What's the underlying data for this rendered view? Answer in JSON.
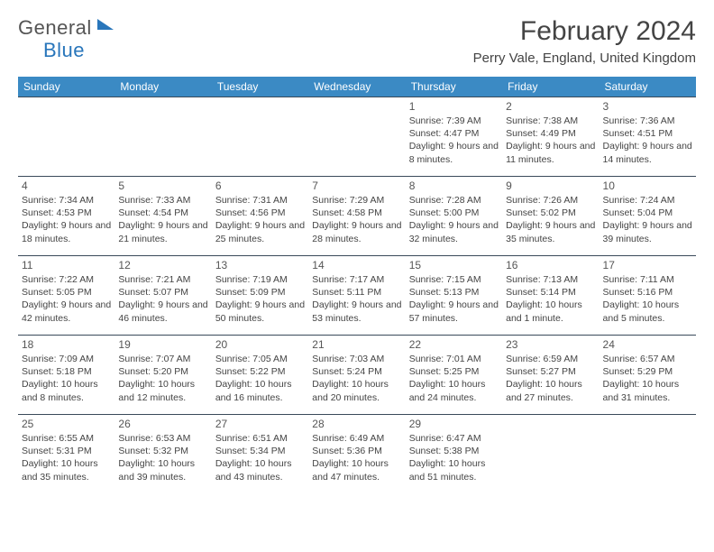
{
  "logo": {
    "part1": "General",
    "part2": "Blue"
  },
  "title": "February 2024",
  "location": "Perry Vale, England, United Kingdom",
  "colors": {
    "header_bg": "#3b8ac4",
    "header_fg": "#ffffff",
    "divider": "#3a4a5a",
    "logo_accent": "#2976bb"
  },
  "day_headers": [
    "Sunday",
    "Monday",
    "Tuesday",
    "Wednesday",
    "Thursday",
    "Friday",
    "Saturday"
  ],
  "weeks": [
    [
      null,
      null,
      null,
      null,
      {
        "d": "1",
        "sr": "7:39 AM",
        "ss": "4:47 PM",
        "dl": "9 hours and 8 minutes."
      },
      {
        "d": "2",
        "sr": "7:38 AM",
        "ss": "4:49 PM",
        "dl": "9 hours and 11 minutes."
      },
      {
        "d": "3",
        "sr": "7:36 AM",
        "ss": "4:51 PM",
        "dl": "9 hours and 14 minutes."
      }
    ],
    [
      {
        "d": "4",
        "sr": "7:34 AM",
        "ss": "4:53 PM",
        "dl": "9 hours and 18 minutes."
      },
      {
        "d": "5",
        "sr": "7:33 AM",
        "ss": "4:54 PM",
        "dl": "9 hours and 21 minutes."
      },
      {
        "d": "6",
        "sr": "7:31 AM",
        "ss": "4:56 PM",
        "dl": "9 hours and 25 minutes."
      },
      {
        "d": "7",
        "sr": "7:29 AM",
        "ss": "4:58 PM",
        "dl": "9 hours and 28 minutes."
      },
      {
        "d": "8",
        "sr": "7:28 AM",
        "ss": "5:00 PM",
        "dl": "9 hours and 32 minutes."
      },
      {
        "d": "9",
        "sr": "7:26 AM",
        "ss": "5:02 PM",
        "dl": "9 hours and 35 minutes."
      },
      {
        "d": "10",
        "sr": "7:24 AM",
        "ss": "5:04 PM",
        "dl": "9 hours and 39 minutes."
      }
    ],
    [
      {
        "d": "11",
        "sr": "7:22 AM",
        "ss": "5:05 PM",
        "dl": "9 hours and 42 minutes."
      },
      {
        "d": "12",
        "sr": "7:21 AM",
        "ss": "5:07 PM",
        "dl": "9 hours and 46 minutes."
      },
      {
        "d": "13",
        "sr": "7:19 AM",
        "ss": "5:09 PM",
        "dl": "9 hours and 50 minutes."
      },
      {
        "d": "14",
        "sr": "7:17 AM",
        "ss": "5:11 PM",
        "dl": "9 hours and 53 minutes."
      },
      {
        "d": "15",
        "sr": "7:15 AM",
        "ss": "5:13 PM",
        "dl": "9 hours and 57 minutes."
      },
      {
        "d": "16",
        "sr": "7:13 AM",
        "ss": "5:14 PM",
        "dl": "10 hours and 1 minute."
      },
      {
        "d": "17",
        "sr": "7:11 AM",
        "ss": "5:16 PM",
        "dl": "10 hours and 5 minutes."
      }
    ],
    [
      {
        "d": "18",
        "sr": "7:09 AM",
        "ss": "5:18 PM",
        "dl": "10 hours and 8 minutes."
      },
      {
        "d": "19",
        "sr": "7:07 AM",
        "ss": "5:20 PM",
        "dl": "10 hours and 12 minutes."
      },
      {
        "d": "20",
        "sr": "7:05 AM",
        "ss": "5:22 PM",
        "dl": "10 hours and 16 minutes."
      },
      {
        "d": "21",
        "sr": "7:03 AM",
        "ss": "5:24 PM",
        "dl": "10 hours and 20 minutes."
      },
      {
        "d": "22",
        "sr": "7:01 AM",
        "ss": "5:25 PM",
        "dl": "10 hours and 24 minutes."
      },
      {
        "d": "23",
        "sr": "6:59 AM",
        "ss": "5:27 PM",
        "dl": "10 hours and 27 minutes."
      },
      {
        "d": "24",
        "sr": "6:57 AM",
        "ss": "5:29 PM",
        "dl": "10 hours and 31 minutes."
      }
    ],
    [
      {
        "d": "25",
        "sr": "6:55 AM",
        "ss": "5:31 PM",
        "dl": "10 hours and 35 minutes."
      },
      {
        "d": "26",
        "sr": "6:53 AM",
        "ss": "5:32 PM",
        "dl": "10 hours and 39 minutes."
      },
      {
        "d": "27",
        "sr": "6:51 AM",
        "ss": "5:34 PM",
        "dl": "10 hours and 43 minutes."
      },
      {
        "d": "28",
        "sr": "6:49 AM",
        "ss": "5:36 PM",
        "dl": "10 hours and 47 minutes."
      },
      {
        "d": "29",
        "sr": "6:47 AM",
        "ss": "5:38 PM",
        "dl": "10 hours and 51 minutes."
      },
      null,
      null
    ]
  ],
  "labels": {
    "sunrise": "Sunrise:",
    "sunset": "Sunset:",
    "daylight": "Daylight:"
  }
}
